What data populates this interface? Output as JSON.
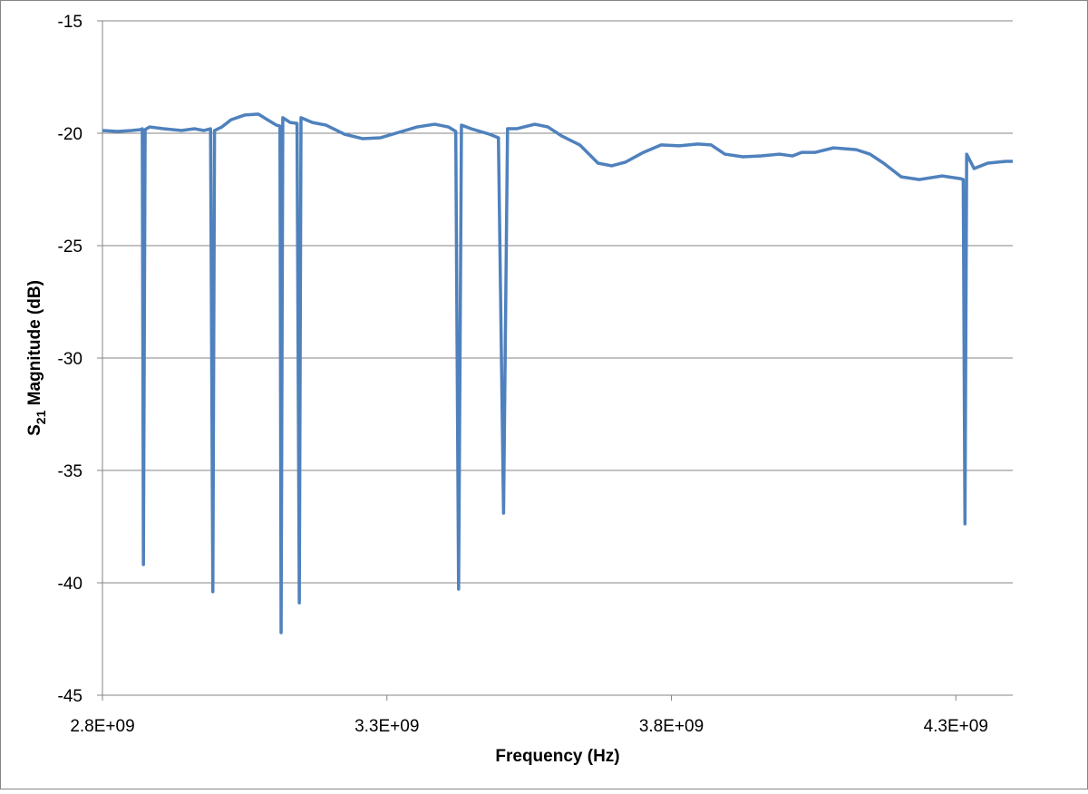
{
  "chart_data": {
    "type": "line",
    "xlabel": "Frequency (Hz)",
    "ylabel": {
      "main": "S",
      "sub": "21",
      "rest": " Magnitude (dB)"
    },
    "x": [
      2800000000,
      2827000000,
      2851000000,
      2867000000,
      2870000000,
      2872000000,
      2875000000,
      2883000000,
      2907000000,
      2939000000,
      2962000000,
      2978000000,
      2990000000,
      2994000000,
      2997000000,
      3010000000,
      3026000000,
      3050000000,
      3074000000,
      3090000000,
      3106000000,
      3112000000,
      3114000000,
      3117000000,
      3130000000,
      3142000000,
      3146000000,
      3149000000,
      3169000000,
      3193000000,
      3225000000,
      3257000000,
      3289000000,
      3321000000,
      3353000000,
      3384000000,
      3408000000,
      3421000000,
      3426000000,
      3431000000,
      3448000000,
      3480000000,
      3496000000,
      3505000000,
      3512000000,
      3528000000,
      3560000000,
      3583000000,
      3607000000,
      3639000000,
      3671000000,
      3695000000,
      3719000000,
      3751000000,
      3782000000,
      3814000000,
      3846000000,
      3870000000,
      3894000000,
      3926000000,
      3958000000,
      3990000000,
      4013000000,
      4029000000,
      4053000000,
      4085000000,
      4125000000,
      4149000000,
      4173000000,
      4204000000,
      4236000000,
      4276000000,
      4308000000,
      4313000000,
      4316000000,
      4319000000,
      4332000000,
      4356000000,
      4388000000,
      4400000000
    ],
    "series": [
      {
        "color": "#4f81bd",
        "values": [
          -19.88,
          -19.92,
          -19.88,
          -19.84,
          -19.8,
          -39.19,
          -19.84,
          -19.72,
          -19.8,
          -19.88,
          -19.8,
          -19.88,
          -19.8,
          -40.4,
          -19.88,
          -19.72,
          -19.4,
          -19.19,
          -19.15,
          -19.4,
          -19.64,
          -19.68,
          -42.22,
          -19.31,
          -19.52,
          -19.56,
          -40.89,
          -19.31,
          -19.52,
          -19.64,
          -20.04,
          -20.24,
          -20.2,
          -19.96,
          -19.72,
          -19.6,
          -19.72,
          -19.92,
          -40.28,
          -19.64,
          -19.8,
          -20.04,
          -20.2,
          -36.9,
          -19.8,
          -19.8,
          -19.6,
          -19.72,
          -20.12,
          -20.52,
          -21.33,
          -21.45,
          -21.29,
          -20.85,
          -20.52,
          -20.56,
          -20.48,
          -20.52,
          -20.93,
          -21.05,
          -21.01,
          -20.93,
          -21.01,
          -20.85,
          -20.85,
          -20.65,
          -20.73,
          -20.93,
          -21.33,
          -21.94,
          -22.06,
          -21.9,
          -22.02,
          -22.06,
          -37.38,
          -20.93,
          -21.57,
          -21.33,
          -21.25,
          -21.25
        ]
      }
    ],
    "xlim": [
      2800000000,
      4400000000
    ],
    "xticks": [
      {
        "value": 2800000000,
        "label": "2.8E+09"
      },
      {
        "value": 3300000000,
        "label": "3.3E+09"
      },
      {
        "value": 3800000000,
        "label": "3.8E+09"
      },
      {
        "value": 4300000000,
        "label": "4.3E+09"
      }
    ],
    "ylim": [
      -45,
      -15
    ],
    "yticks": [
      -45,
      -40,
      -35,
      -30,
      -25,
      -20,
      -15
    ],
    "grid": true
  }
}
